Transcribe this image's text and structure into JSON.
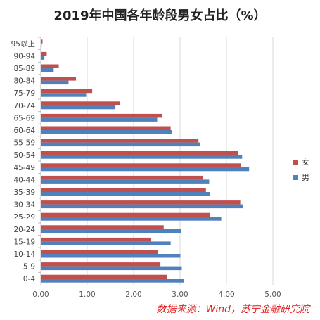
{
  "chart_data": {
    "type": "bar",
    "orientation": "horizontal",
    "title": "2019年中国各年龄段男女占比（%）",
    "categories": [
      "0-4",
      "5-9",
      "10-14",
      "15-19",
      "20-24",
      "25-29",
      "30-34",
      "35-39",
      "40-44",
      "45-49",
      "50-54",
      "55-59",
      "60-64",
      "65-69",
      "70-74",
      "75-79",
      "80-84",
      "85-89",
      "90-94",
      "95以上"
    ],
    "series": [
      {
        "name": "女",
        "color": "#c0504d",
        "values": [
          2.71,
          2.57,
          2.52,
          2.36,
          2.64,
          3.64,
          4.29,
          3.55,
          3.49,
          4.31,
          4.25,
          3.39,
          2.79,
          2.61,
          1.7,
          1.1,
          0.75,
          0.38,
          0.12,
          0.03
        ]
      },
      {
        "name": "男",
        "color": "#4f81bd",
        "values": [
          3.07,
          3.03,
          3.0,
          2.79,
          3.02,
          3.88,
          4.35,
          3.63,
          3.62,
          4.48,
          4.33,
          3.42,
          2.81,
          2.5,
          1.6,
          0.97,
          0.59,
          0.27,
          0.07,
          0.01
        ]
      }
    ],
    "xticks": [
      "0.00",
      "1.00",
      "2.00",
      "3.00",
      "4.00",
      "5.00"
    ],
    "xlim": [
      0,
      5
    ],
    "grid": true,
    "legend": "right"
  },
  "source": "数据来源：Wind，苏宁金融研究院"
}
